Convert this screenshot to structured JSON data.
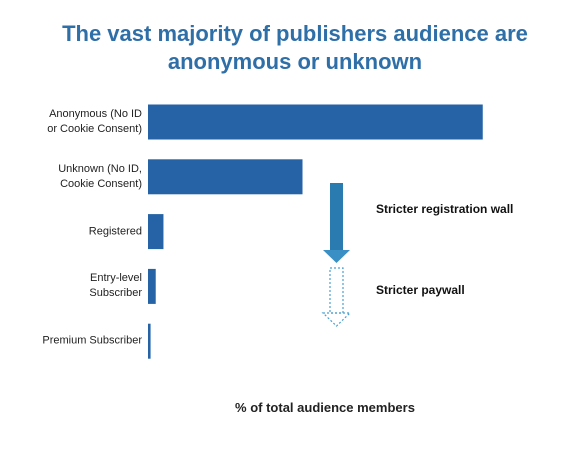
{
  "chart_data": {
    "type": "bar",
    "orientation": "horizontal",
    "title": "The vast majority of publishers audience are anonymous or unknown",
    "x_label": "% of total audience members",
    "categories": [
      "Anonymous (No ID\nor Cookie Consent)",
      "Unknown (No ID,\nCookie Consent)",
      "Registered",
      "Entry-level\nSubscriber",
      "Premium Subscriber"
    ],
    "values": [
      65,
      30,
      3,
      1.5,
      0.5
    ],
    "color": "#2563a6",
    "annotations": [
      "Stricter registration wall",
      "Stricter paywall"
    ]
  }
}
